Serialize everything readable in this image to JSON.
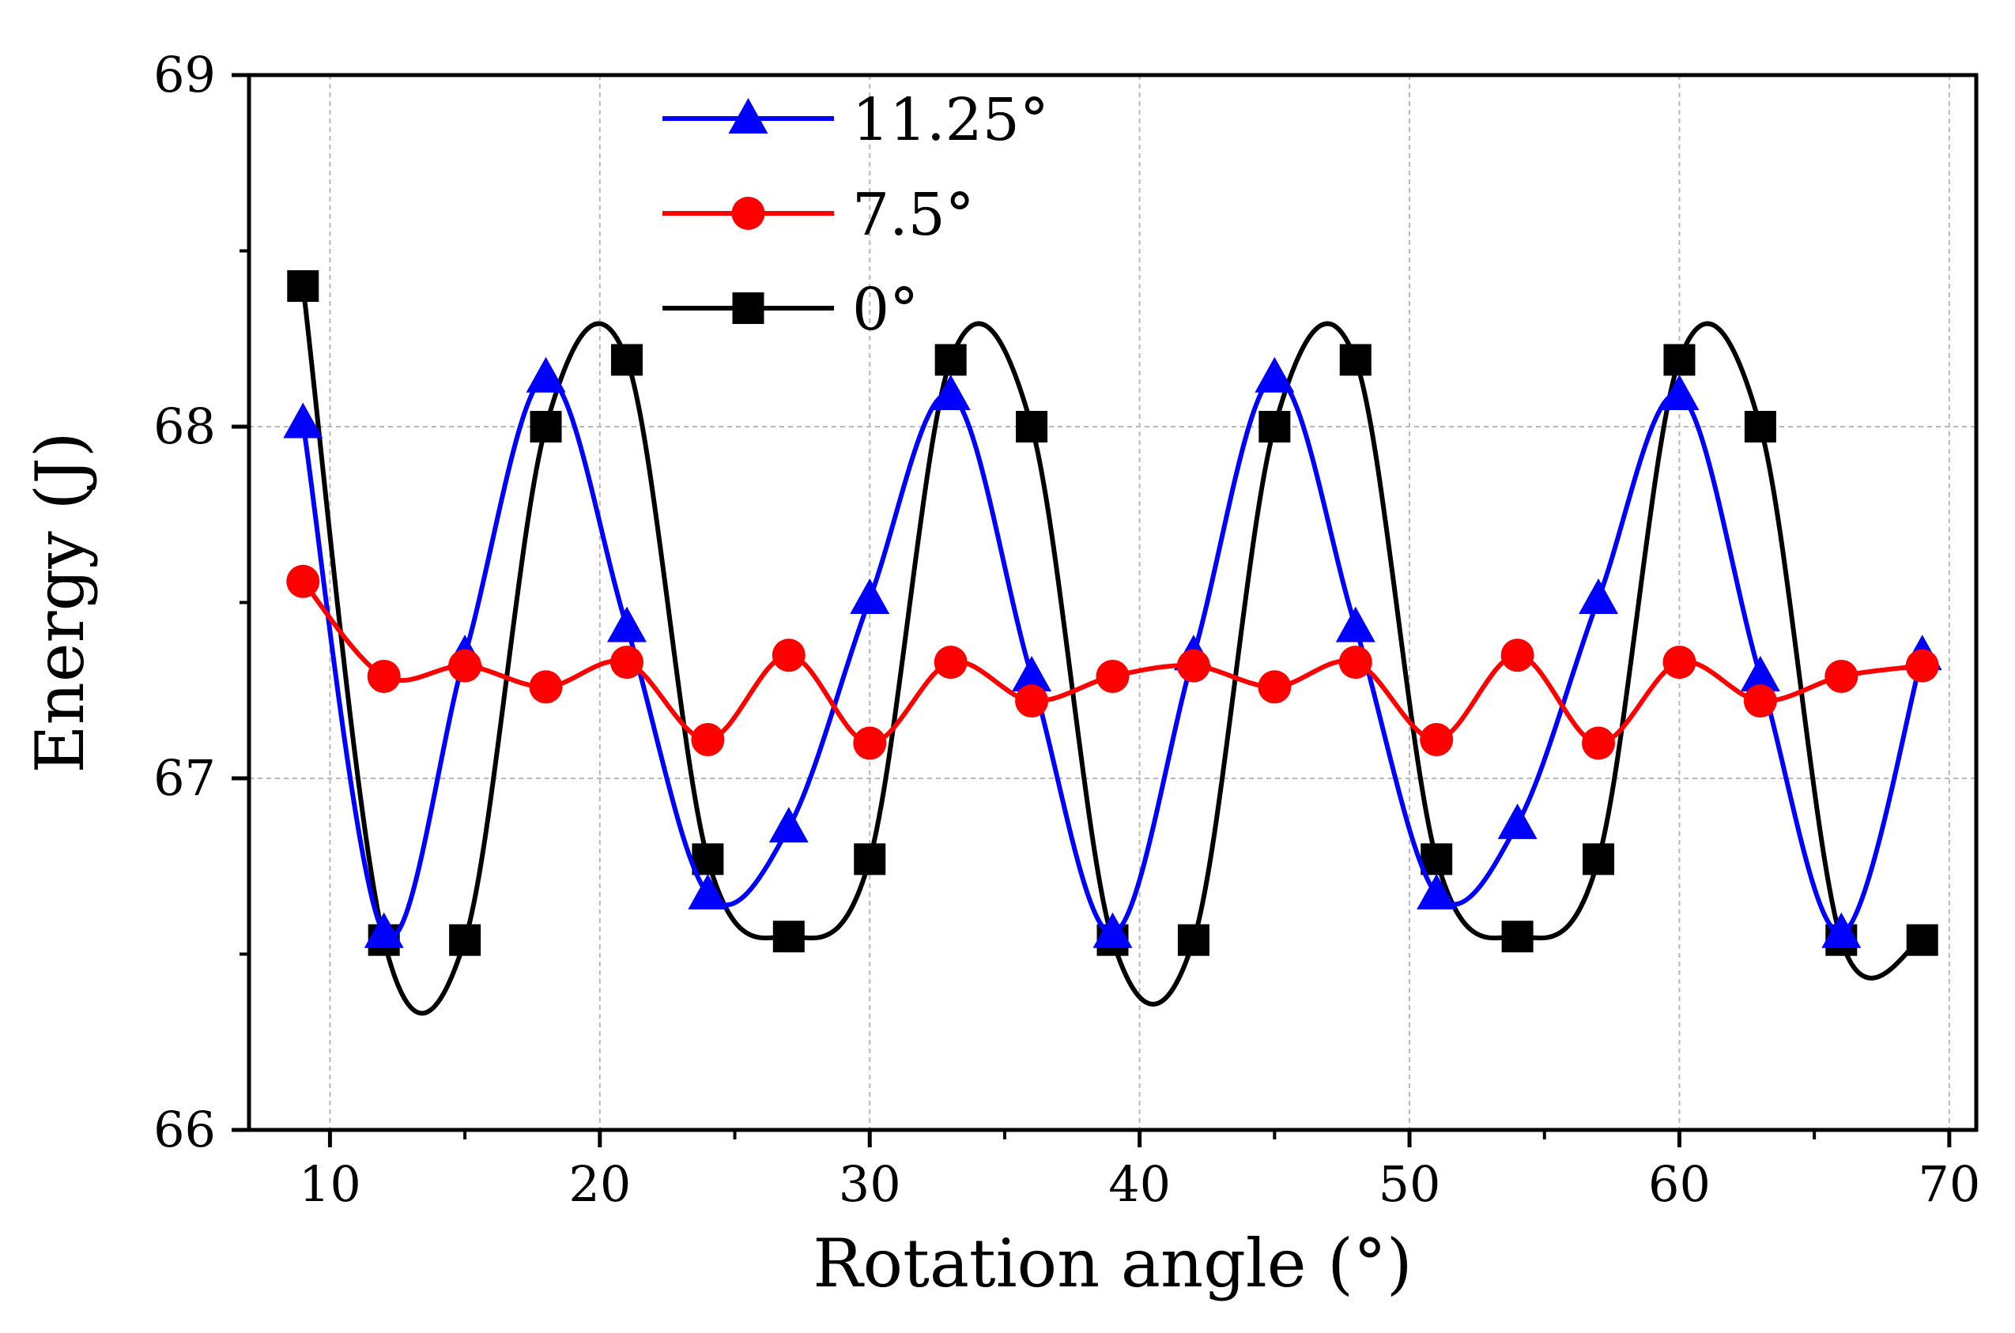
{
  "chart_data": {
    "type": "line",
    "xlabel": "Rotation angle (°)",
    "ylabel": "Energy (J)",
    "xlim": [
      7,
      71
    ],
    "ylim": [
      66,
      69
    ],
    "xticks": [
      10,
      20,
      30,
      40,
      50,
      60,
      70
    ],
    "yticks": [
      66,
      67,
      68,
      69
    ],
    "xtick_labels": [
      "10",
      "20",
      "30",
      "40",
      "50",
      "60",
      "70"
    ],
    "ytick_labels": [
      "66",
      "67",
      "68",
      "69"
    ],
    "grid": true,
    "legend_position": "top-center",
    "x": [
      9,
      12,
      15,
      18,
      21,
      24,
      27,
      30,
      33,
      36,
      39,
      42,
      45,
      48,
      51,
      54,
      57,
      60,
      63,
      66,
      69
    ],
    "series": [
      {
        "name": "11.25°",
        "color": "#0000ff",
        "marker": "triangle",
        "values": [
          68.01,
          66.56,
          67.35,
          68.14,
          67.43,
          66.67,
          66.86,
          67.51,
          68.09,
          67.29,
          66.56,
          67.35,
          68.14,
          67.43,
          66.67,
          66.87,
          67.51,
          68.09,
          67.29,
          66.56,
          67.35
        ]
      },
      {
        "name": "7.5°",
        "color": "#ff0000",
        "marker": "circle",
        "values": [
          67.56,
          67.29,
          67.32,
          67.26,
          67.33,
          67.11,
          67.35,
          67.1,
          67.33,
          67.22,
          67.29,
          67.32,
          67.26,
          67.33,
          67.11,
          67.35,
          67.1,
          67.33,
          67.22,
          67.29,
          67.32
        ]
      },
      {
        "name": "0°",
        "color": "#000000",
        "marker": "square",
        "values": [
          68.4,
          66.54,
          66.54,
          68.0,
          68.19,
          66.77,
          66.55,
          66.77,
          68.19,
          68.0,
          66.54,
          66.54,
          68.0,
          68.19,
          66.77,
          66.55,
          66.77,
          68.19,
          68.0,
          66.54,
          66.54
        ]
      }
    ]
  }
}
